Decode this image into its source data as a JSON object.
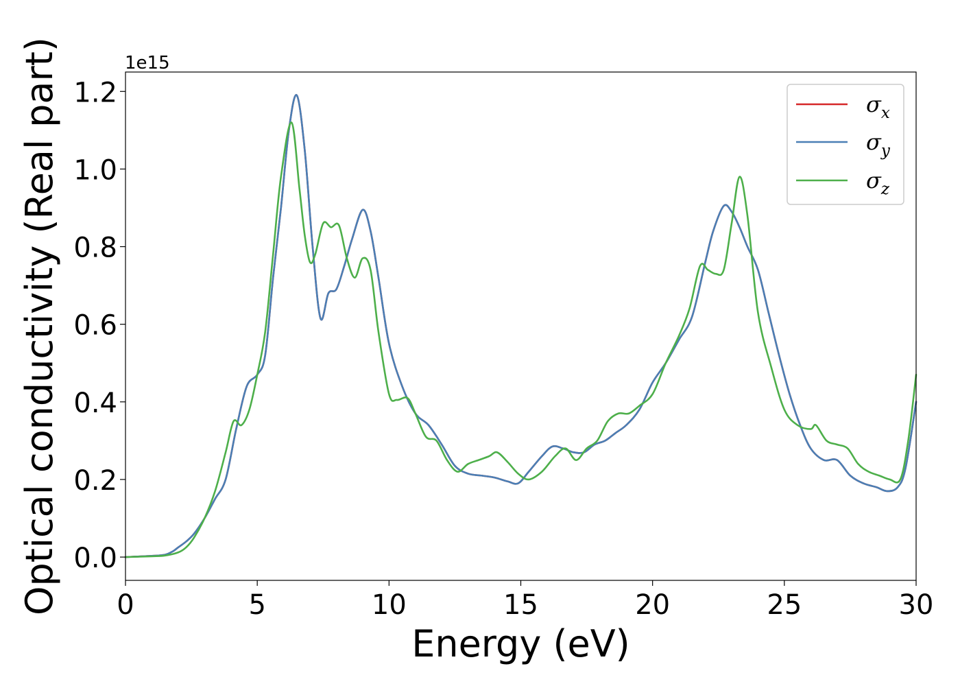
{
  "chart_data": {
    "type": "line",
    "xlabel": "Energy (eV)",
    "ylabel": "Optical conductivity (Real part)",
    "y_offset_label": "1e15",
    "xlim": [
      0,
      30
    ],
    "ylim": [
      -0.06,
      1.25
    ],
    "xticks": [
      0,
      5,
      10,
      15,
      20,
      25,
      30
    ],
    "xtick_labels": [
      "0",
      "5",
      "10",
      "15",
      "20",
      "25",
      "30"
    ],
    "yticks": [
      0.0,
      0.2,
      0.4,
      0.6,
      0.8,
      1.0,
      1.2
    ],
    "ytick_labels": [
      "0.0",
      "0.2",
      "0.4",
      "0.6",
      "0.8",
      "1.0",
      "1.2"
    ],
    "grid": false,
    "legend_position": "top-right",
    "series": [
      {
        "name": "σx",
        "symbol": "σ",
        "subscript": "x",
        "color": "#d62728",
        "x": [
          0,
          1,
          1.5,
          1.8,
          2,
          2.3,
          2.6,
          3,
          3.4,
          3.8,
          4.2,
          4.6,
          5,
          5.3,
          5.6,
          5.9,
          6.2,
          6.5,
          6.8,
          7.1,
          7.4,
          7.7,
          8,
          8.3,
          8.6,
          9,
          9.3,
          9.6,
          10,
          10.5,
          11,
          11.5,
          12,
          12.5,
          13,
          13.5,
          14,
          14.5,
          14.9,
          15.3,
          15.8,
          16.2,
          16.6,
          17,
          17.4,
          17.8,
          18.2,
          18.6,
          19,
          19.5,
          20,
          20.5,
          21,
          21.5,
          22,
          22.3,
          22.7,
          23,
          23.3,
          23.6,
          24,
          24.4,
          24.8,
          25.2,
          25.6,
          26,
          26.5,
          27,
          27.5,
          28,
          28.5,
          28.9,
          29.3,
          29.6,
          30
        ],
        "y": [
          0,
          0.003,
          0.006,
          0.015,
          0.025,
          0.04,
          0.06,
          0.1,
          0.15,
          0.2,
          0.33,
          0.44,
          0.47,
          0.52,
          0.72,
          0.9,
          1.1,
          1.19,
          1.05,
          0.8,
          0.615,
          0.68,
          0.69,
          0.75,
          0.82,
          0.895,
          0.84,
          0.72,
          0.55,
          0.44,
          0.37,
          0.34,
          0.29,
          0.235,
          0.215,
          0.21,
          0.205,
          0.195,
          0.19,
          0.22,
          0.26,
          0.285,
          0.28,
          0.27,
          0.27,
          0.29,
          0.3,
          0.32,
          0.34,
          0.38,
          0.45,
          0.5,
          0.56,
          0.62,
          0.76,
          0.84,
          0.905,
          0.89,
          0.85,
          0.8,
          0.74,
          0.63,
          0.52,
          0.42,
          0.34,
          0.28,
          0.25,
          0.25,
          0.21,
          0.19,
          0.18,
          0.17,
          0.18,
          0.23,
          0.4
        ]
      },
      {
        "name": "σy",
        "symbol": "σ",
        "subscript": "y",
        "color": "#4a7fb5",
        "x": [
          0,
          1,
          1.5,
          1.8,
          2,
          2.3,
          2.6,
          3,
          3.4,
          3.8,
          4.2,
          4.6,
          5,
          5.3,
          5.6,
          5.9,
          6.2,
          6.5,
          6.8,
          7.1,
          7.4,
          7.7,
          8,
          8.3,
          8.6,
          9,
          9.3,
          9.6,
          10,
          10.5,
          11,
          11.5,
          12,
          12.5,
          13,
          13.5,
          14,
          14.5,
          14.9,
          15.3,
          15.8,
          16.2,
          16.6,
          17,
          17.4,
          17.8,
          18.2,
          18.6,
          19,
          19.5,
          20,
          20.5,
          21,
          21.5,
          22,
          22.3,
          22.7,
          23,
          23.3,
          23.6,
          24,
          24.4,
          24.8,
          25.2,
          25.6,
          26,
          26.5,
          27,
          27.5,
          28,
          28.5,
          28.9,
          29.3,
          29.6,
          30
        ],
        "y": [
          0,
          0.003,
          0.006,
          0.015,
          0.025,
          0.04,
          0.06,
          0.1,
          0.15,
          0.2,
          0.33,
          0.44,
          0.47,
          0.52,
          0.72,
          0.9,
          1.1,
          1.19,
          1.05,
          0.8,
          0.615,
          0.68,
          0.69,
          0.75,
          0.82,
          0.895,
          0.84,
          0.72,
          0.55,
          0.44,
          0.37,
          0.34,
          0.29,
          0.235,
          0.215,
          0.21,
          0.205,
          0.195,
          0.19,
          0.22,
          0.26,
          0.285,
          0.28,
          0.27,
          0.27,
          0.29,
          0.3,
          0.32,
          0.34,
          0.38,
          0.45,
          0.5,
          0.56,
          0.62,
          0.76,
          0.84,
          0.905,
          0.89,
          0.85,
          0.8,
          0.74,
          0.63,
          0.52,
          0.42,
          0.34,
          0.28,
          0.25,
          0.25,
          0.21,
          0.19,
          0.18,
          0.17,
          0.18,
          0.23,
          0.4
        ]
      },
      {
        "name": "σz",
        "symbol": "σ",
        "subscript": "z",
        "color": "#4daf4a",
        "x": [
          0,
          1,
          1.5,
          2,
          2.3,
          2.6,
          3,
          3.4,
          3.8,
          4.1,
          4.4,
          4.7,
          5,
          5.3,
          5.6,
          5.9,
          6.3,
          6.6,
          6.8,
          7,
          7.2,
          7.5,
          7.8,
          8.1,
          8.4,
          8.7,
          9,
          9.3,
          9.6,
          10,
          10.3,
          10.7,
          11,
          11.4,
          11.8,
          12.2,
          12.6,
          13,
          13.4,
          13.8,
          14.1,
          14.5,
          14.9,
          15.3,
          15.8,
          16.3,
          16.7,
          17.1,
          17.5,
          17.9,
          18.3,
          18.7,
          19.1,
          19.5,
          20,
          20.5,
          21,
          21.4,
          21.8,
          22.1,
          22.4,
          22.7,
          23,
          23.3,
          23.6,
          24,
          24.5,
          25,
          25.5,
          26,
          26.2,
          26.6,
          27,
          27.4,
          27.8,
          28.2,
          28.6,
          29,
          29.4,
          29.7,
          30
        ],
        "y": [
          0,
          0.002,
          0.004,
          0.012,
          0.025,
          0.05,
          0.1,
          0.17,
          0.27,
          0.35,
          0.34,
          0.38,
          0.47,
          0.58,
          0.78,
          0.98,
          1.12,
          0.95,
          0.83,
          0.76,
          0.78,
          0.86,
          0.85,
          0.855,
          0.77,
          0.72,
          0.77,
          0.74,
          0.58,
          0.42,
          0.405,
          0.41,
          0.37,
          0.31,
          0.3,
          0.25,
          0.22,
          0.24,
          0.25,
          0.26,
          0.27,
          0.245,
          0.215,
          0.2,
          0.22,
          0.26,
          0.28,
          0.25,
          0.28,
          0.3,
          0.35,
          0.37,
          0.37,
          0.39,
          0.42,
          0.5,
          0.57,
          0.64,
          0.75,
          0.74,
          0.73,
          0.74,
          0.86,
          0.98,
          0.88,
          0.63,
          0.49,
          0.38,
          0.34,
          0.33,
          0.34,
          0.3,
          0.29,
          0.28,
          0.24,
          0.22,
          0.21,
          0.2,
          0.2,
          0.3,
          0.47
        ]
      }
    ]
  }
}
